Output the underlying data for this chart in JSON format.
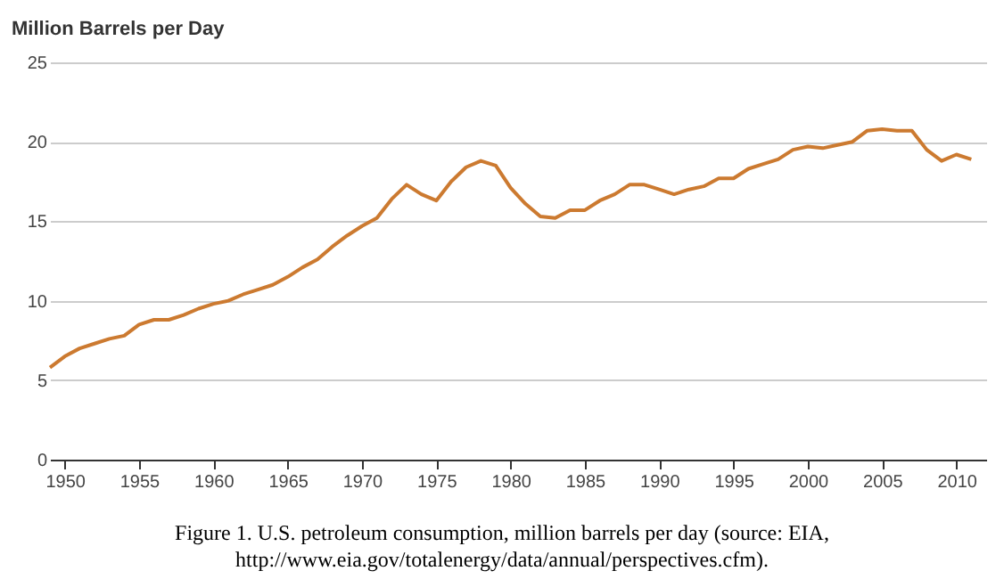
{
  "chart_data": {
    "type": "line",
    "ylabel": "Million Barrels per Day",
    "annotations": [
      "Figure 1. U.S. petroleum consumption, million barrels per day (source: EIA, http://www.eia.gov/totalenergy/data/annual/perspectives.cfm)."
    ],
    "x": [
      1949,
      1950,
      1951,
      1952,
      1953,
      1954,
      1955,
      1956,
      1957,
      1958,
      1959,
      1960,
      1961,
      1962,
      1963,
      1964,
      1965,
      1966,
      1967,
      1968,
      1969,
      1970,
      1971,
      1972,
      1973,
      1974,
      1975,
      1976,
      1977,
      1978,
      1979,
      1980,
      1981,
      1982,
      1983,
      1984,
      1985,
      1986,
      1987,
      1988,
      1989,
      1990,
      1991,
      1992,
      1993,
      1994,
      1995,
      1996,
      1997,
      1998,
      1999,
      2000,
      2001,
      2002,
      2003,
      2004,
      2005,
      2006,
      2007,
      2008,
      2009,
      2010,
      2011
    ],
    "series": [
      {
        "color": "#cc7a30",
        "values": [
          5.8,
          6.5,
          7.0,
          7.3,
          7.6,
          7.8,
          8.5,
          8.8,
          8.8,
          9.1,
          9.5,
          9.8,
          10.0,
          10.4,
          10.7,
          11.0,
          11.5,
          12.1,
          12.6,
          13.4,
          14.1,
          14.7,
          15.2,
          16.4,
          17.3,
          16.7,
          16.3,
          17.5,
          18.4,
          18.8,
          18.5,
          17.1,
          16.1,
          15.3,
          15.2,
          15.7,
          15.7,
          16.3,
          16.7,
          17.3,
          17.3,
          17.0,
          16.7,
          17.0,
          17.2,
          17.7,
          17.7,
          18.3,
          18.6,
          18.9,
          19.5,
          19.7,
          19.6,
          19.8,
          20.0,
          20.7,
          20.8,
          20.7,
          20.7,
          19.5,
          18.8,
          19.2,
          18.9
        ]
      }
    ],
    "xlim": [
      1949,
      2012
    ],
    "xticks": [
      1950,
      1955,
      1960,
      1965,
      1970,
      1975,
      1980,
      1985,
      1990,
      1995,
      2000,
      2005,
      2010
    ],
    "ylim": [
      0,
      25
    ],
    "yticks": [
      0,
      5,
      10,
      15,
      20,
      25
    ],
    "grid": "y",
    "line_style": "solid",
    "marker": "none"
  }
}
